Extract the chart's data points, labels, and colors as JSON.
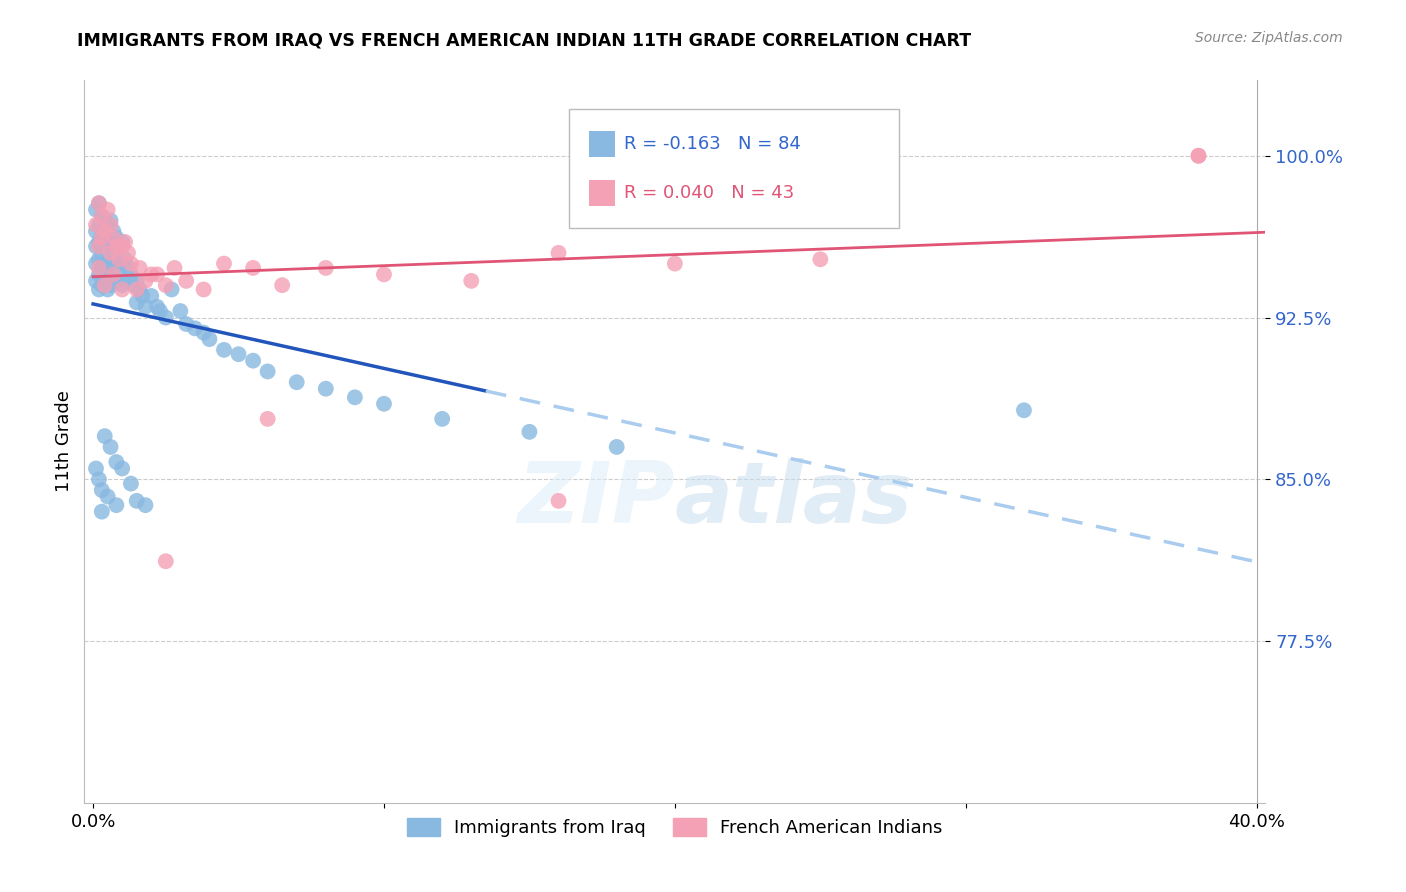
{
  "title": "IMMIGRANTS FROM IRAQ VS FRENCH AMERICAN INDIAN 11TH GRADE CORRELATION CHART",
  "source": "Source: ZipAtlas.com",
  "ylabel": "11th Grade",
  "series1_color": "#89b8e0",
  "series2_color": "#f4a0b5",
  "trendline1_color": "#2255bb",
  "trendline2_color": "#e05575",
  "trendline1_ext_color": "#aaccee",
  "legend_r1": "R = -0.163",
  "legend_n1": "N = 84",
  "legend_r2": "R = 0.040",
  "legend_n2": "N = 43",
  "label1": "Immigrants from Iraq",
  "label2": "French American Indians",
  "yticks": [
    0.775,
    0.85,
    0.925,
    1.0
  ],
  "ytick_labels": [
    "77.5%",
    "85.0%",
    "92.5%",
    "100.0%"
  ],
  "ymin": 0.7,
  "ymax": 1.035,
  "xmin": -0.003,
  "xmax": 0.403,
  "solid_cutoff": 0.135,
  "watermark": "ZIPatlas",
  "scatter1_x": [
    0.001,
    0.001,
    0.001,
    0.001,
    0.001,
    0.002,
    0.002,
    0.002,
    0.002,
    0.002,
    0.002,
    0.003,
    0.003,
    0.003,
    0.003,
    0.003,
    0.004,
    0.004,
    0.004,
    0.004,
    0.005,
    0.005,
    0.005,
    0.005,
    0.006,
    0.006,
    0.006,
    0.006,
    0.007,
    0.007,
    0.007,
    0.008,
    0.008,
    0.008,
    0.009,
    0.009,
    0.01,
    0.01,
    0.01,
    0.011,
    0.011,
    0.012,
    0.013,
    0.014,
    0.015,
    0.015,
    0.016,
    0.017,
    0.018,
    0.02,
    0.022,
    0.023,
    0.025,
    0.027,
    0.03,
    0.032,
    0.035,
    0.038,
    0.04,
    0.045,
    0.05,
    0.055,
    0.06,
    0.07,
    0.08,
    0.09,
    0.1,
    0.12,
    0.15,
    0.18,
    0.001,
    0.002,
    0.003,
    0.004,
    0.006,
    0.008,
    0.01,
    0.013,
    0.015,
    0.018,
    0.003,
    0.005,
    0.008,
    0.32
  ],
  "scatter1_y": [
    0.975,
    0.965,
    0.958,
    0.95,
    0.942,
    0.978,
    0.968,
    0.96,
    0.952,
    0.945,
    0.938,
    0.972,
    0.963,
    0.955,
    0.947,
    0.94,
    0.97,
    0.96,
    0.95,
    0.942,
    0.968,
    0.958,
    0.948,
    0.938,
    0.97,
    0.96,
    0.95,
    0.94,
    0.965,
    0.955,
    0.945,
    0.962,
    0.952,
    0.942,
    0.958,
    0.948,
    0.96,
    0.95,
    0.94,
    0.952,
    0.942,
    0.948,
    0.945,
    0.94,
    0.942,
    0.932,
    0.938,
    0.935,
    0.93,
    0.935,
    0.93,
    0.928,
    0.925,
    0.938,
    0.928,
    0.922,
    0.92,
    0.918,
    0.915,
    0.91,
    0.908,
    0.905,
    0.9,
    0.895,
    0.892,
    0.888,
    0.885,
    0.878,
    0.872,
    0.865,
    0.855,
    0.85,
    0.845,
    0.87,
    0.865,
    0.858,
    0.855,
    0.848,
    0.84,
    0.838,
    0.835,
    0.842,
    0.838,
    0.882
  ],
  "scatter2_x": [
    0.001,
    0.002,
    0.002,
    0.003,
    0.003,
    0.004,
    0.005,
    0.006,
    0.006,
    0.007,
    0.008,
    0.009,
    0.01,
    0.011,
    0.012,
    0.013,
    0.015,
    0.016,
    0.018,
    0.02,
    0.022,
    0.025,
    0.028,
    0.032,
    0.038,
    0.045,
    0.055,
    0.065,
    0.08,
    0.1,
    0.13,
    0.16,
    0.2,
    0.25,
    0.38,
    0.002,
    0.004,
    0.007,
    0.01,
    0.025,
    0.06,
    0.16,
    0.38
  ],
  "scatter2_y": [
    0.968,
    0.978,
    0.958,
    0.972,
    0.962,
    0.965,
    0.975,
    0.968,
    0.955,
    0.962,
    0.958,
    0.952,
    0.958,
    0.96,
    0.955,
    0.95,
    0.938,
    0.948,
    0.942,
    0.945,
    0.945,
    0.94,
    0.948,
    0.942,
    0.938,
    0.95,
    0.948,
    0.94,
    0.948,
    0.945,
    0.942,
    0.955,
    0.95,
    0.952,
    1.0,
    0.948,
    0.94,
    0.945,
    0.938,
    0.812,
    0.878,
    0.84,
    1.0
  ]
}
